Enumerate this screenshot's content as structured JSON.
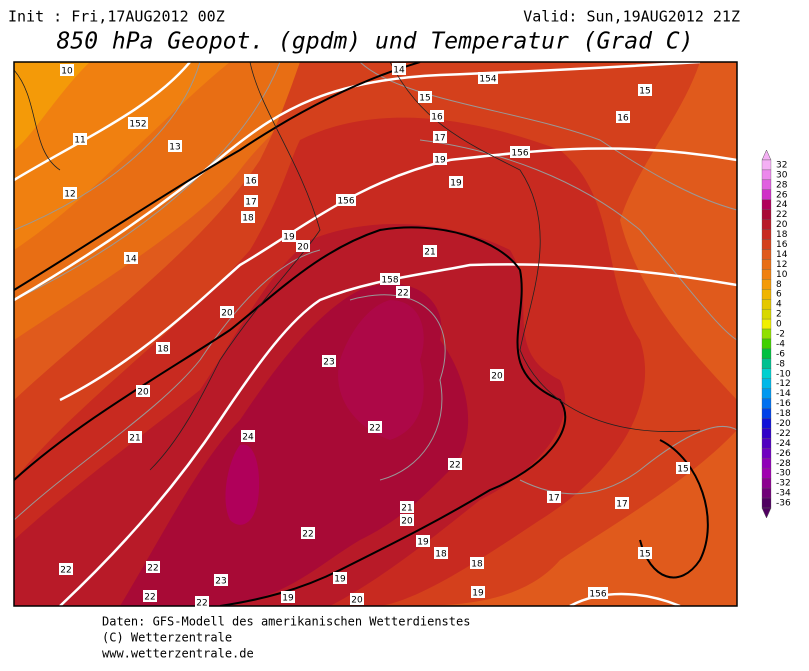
{
  "header": {
    "init": "Init : Fri,17AUG2012  00Z",
    "valid": "Valid: Sun,19AUG2012  21Z",
    "title": "850 hPa Geopot. (gpdm) und Temperatur (Grad C)"
  },
  "legend": [
    {
      "label": "32",
      "color": "#f4b0f4"
    },
    {
      "label": "30",
      "color": "#ec88ec"
    },
    {
      "label": "28",
      "color": "#e060e0"
    },
    {
      "label": "26",
      "color": "#d030c8"
    },
    {
      "label": "24",
      "color": "#b0005a"
    },
    {
      "label": "22",
      "color": "#a80a36"
    },
    {
      "label": "20",
      "color": "#b81a28"
    },
    {
      "label": "18",
      "color": "#c82a20"
    },
    {
      "label": "16",
      "color": "#d4401c"
    },
    {
      "label": "14",
      "color": "#e05a1c"
    },
    {
      "label": "12",
      "color": "#e86e14"
    },
    {
      "label": "10",
      "color": "#f08010"
    },
    {
      "label": "8",
      "color": "#f49a08"
    },
    {
      "label": "6",
      "color": "#f0b400"
    },
    {
      "label": "4",
      "color": "#e4c800"
    },
    {
      "label": "2",
      "color": "#d8d800"
    },
    {
      "label": "0",
      "color": "#f0f000"
    },
    {
      "label": "-2",
      "color": "#90e000"
    },
    {
      "label": "-4",
      "color": "#40d000"
    },
    {
      "label": "-6",
      "color": "#00c040"
    },
    {
      "label": "-8",
      "color": "#00c090"
    },
    {
      "label": "-10",
      "color": "#00d0d0"
    },
    {
      "label": "-12",
      "color": "#00b8e8"
    },
    {
      "label": "-14",
      "color": "#0098f0"
    },
    {
      "label": "-16",
      "color": "#0070f0"
    },
    {
      "label": "-18",
      "color": "#0040e8"
    },
    {
      "label": "-20",
      "color": "#1010d8"
    },
    {
      "label": "-22",
      "color": "#3000c8"
    },
    {
      "label": "-24",
      "color": "#5000c0"
    },
    {
      "label": "-26",
      "color": "#7000c0"
    },
    {
      "label": "-28",
      "color": "#9000b8"
    },
    {
      "label": "-30",
      "color": "#a000b0"
    },
    {
      "label": "-32",
      "color": "#8c0090"
    },
    {
      "label": "-34",
      "color": "#700078"
    },
    {
      "label": "-36",
      "color": "#500060"
    }
  ],
  "contour_labels": [
    "10",
    "14",
    "154",
    "15",
    "152",
    "11",
    "13",
    "15",
    "16",
    "17",
    "16",
    "19",
    "156",
    "12",
    "16",
    "19",
    "17",
    "156",
    "18",
    "19",
    "20",
    "21",
    "14",
    "158",
    "22",
    "20",
    "18",
    "23",
    "20",
    "20",
    "22",
    "21",
    "24",
    "22",
    "15",
    "17",
    "17",
    "21",
    "20",
    "22",
    "19",
    "18",
    "18",
    "15",
    "22",
    "22",
    "23",
    "19",
    "19",
    "22",
    "22",
    "19",
    "20",
    "156"
  ],
  "footer": [
    "Daten: GFS-Modell des amerikanischen Wetterdienstes",
    "(C) Wetterzentrale",
    "www.wetterzentrale.de"
  ]
}
